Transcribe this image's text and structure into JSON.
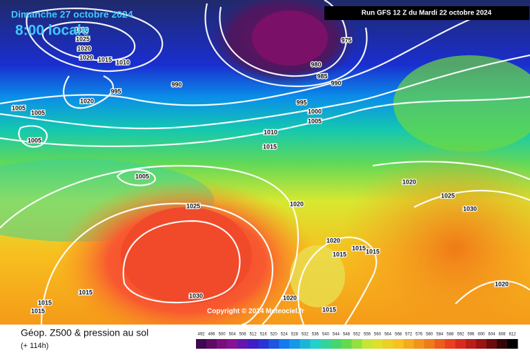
{
  "header": {
    "date": "Dimanche 27 octobre 2024",
    "time": "8:00 locale",
    "run": "Run GFS 12 Z du Mardi 22 octobre 2024"
  },
  "isobar_labels": [
    "1030",
    "1025",
    "1020",
    "1020",
    "1015",
    "1010",
    "995",
    "1020",
    "1005",
    "1005",
    "1005",
    "990",
    "975",
    "980",
    "985",
    "990",
    "995",
    "1000",
    "1005",
    "1010",
    "1015",
    "1005",
    "1025",
    "1020",
    "1020",
    "1025",
    "1030",
    "1020",
    "1015",
    "1015",
    "1015",
    "1015",
    "1030",
    "1015",
    "1015",
    "1020",
    "1015",
    "1020"
  ],
  "copyright": "Copyright © 2024 Meteociel.fr",
  "footer": {
    "title": "Géop. Z500 & pression au sol",
    "subtitle": "(+ 114h)"
  },
  "legend": {
    "labels": [
      "492",
      "496",
      "500",
      "504",
      "508",
      "512",
      "516",
      "520",
      "524",
      "528",
      "532",
      "536",
      "540",
      "544",
      "548",
      "552",
      "556",
      "560",
      "564",
      "568",
      "572",
      "576",
      "580",
      "584",
      "588",
      "592",
      "596",
      "600",
      "604",
      "608",
      "612"
    ]
  }
}
